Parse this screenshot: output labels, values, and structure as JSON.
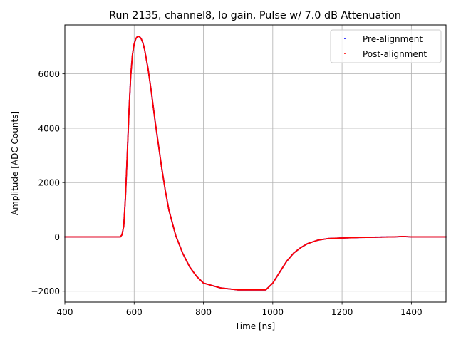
{
  "chart_data": {
    "type": "scatter",
    "title": "Run 2135, channel8, lo gain, Pulse w/ 7.0 dB Attenuation",
    "xlabel": "Time [ns]",
    "ylabel": "Amplitude [ADC Counts]",
    "xlim": [
      400,
      1500
    ],
    "ylim": [
      -2400,
      7800
    ],
    "xticks": [
      400,
      600,
      800,
      1000,
      1200,
      1400
    ],
    "yticks": [
      -2000,
      0,
      2000,
      4000,
      6000
    ],
    "xtick_labels": [
      "400",
      "600",
      "800",
      "1000",
      "1200",
      "1400"
    ],
    "ytick_labels": [
      "−2000",
      "0",
      "2000",
      "4000",
      "6000"
    ],
    "grid": true,
    "legend_position": "top-right",
    "series": [
      {
        "name": "Pre-alignment",
        "color": "#0000ff",
        "x": [
          400,
          560,
          565,
          570,
          575,
          580,
          585,
          590,
          595,
          600,
          605,
          610,
          615,
          620,
          625,
          630,
          640,
          650,
          660,
          670,
          680,
          690,
          700,
          720,
          740,
          760,
          780,
          800,
          850,
          900,
          950,
          980,
          1000,
          1020,
          1040,
          1060,
          1080,
          1100,
          1130,
          1160,
          1200,
          1250,
          1300,
          1350,
          1375,
          1400,
          1450,
          1500
        ],
        "y": [
          0,
          0,
          80,
          400,
          1500,
          3000,
          4600,
          5900,
          6700,
          7100,
          7300,
          7380,
          7370,
          7300,
          7150,
          6900,
          6200,
          5300,
          4300,
          3400,
          2500,
          1700,
          1000,
          50,
          -600,
          -1100,
          -1450,
          -1700,
          -1880,
          -1950,
          -1950,
          -1950,
          -1700,
          -1300,
          -900,
          -600,
          -400,
          -250,
          -120,
          -60,
          -40,
          -20,
          -10,
          0,
          15,
          0,
          0,
          0
        ]
      },
      {
        "name": "Post-alignment",
        "color": "#ff0000",
        "x": [
          400,
          560,
          565,
          570,
          575,
          580,
          585,
          590,
          595,
          600,
          605,
          610,
          615,
          620,
          625,
          630,
          640,
          650,
          660,
          670,
          680,
          690,
          700,
          720,
          740,
          760,
          780,
          800,
          850,
          900,
          950,
          980,
          1000,
          1020,
          1040,
          1060,
          1080,
          1100,
          1130,
          1160,
          1200,
          1250,
          1300,
          1350,
          1375,
          1400,
          1450,
          1500
        ],
        "y": [
          0,
          0,
          80,
          400,
          1500,
          3000,
          4600,
          5900,
          6700,
          7100,
          7300,
          7380,
          7370,
          7300,
          7150,
          6900,
          6200,
          5300,
          4300,
          3400,
          2500,
          1700,
          1000,
          50,
          -600,
          -1100,
          -1450,
          -1700,
          -1880,
          -1950,
          -1950,
          -1950,
          -1700,
          -1300,
          -900,
          -600,
          -400,
          -250,
          -120,
          -60,
          -40,
          -20,
          -10,
          0,
          15,
          0,
          0,
          0
        ]
      }
    ]
  }
}
